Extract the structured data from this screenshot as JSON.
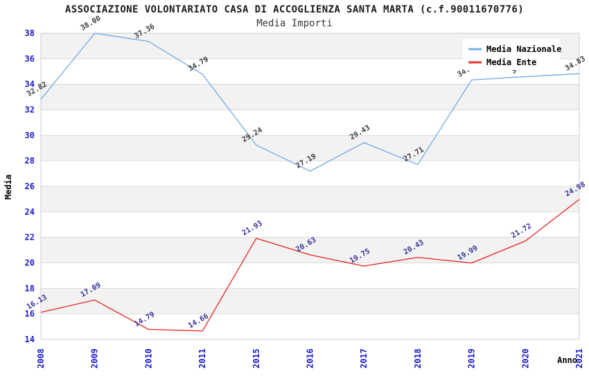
{
  "header": {
    "title": "ASSOCIAZIONE VOLONTARIATO CASA DI ACCOGLIENZA SANTA MARTA (c.f.90011670776)",
    "subtitle": "Media Importi"
  },
  "chart_data": {
    "type": "line",
    "categories": [
      "2008",
      "2009",
      "2010",
      "2011",
      "2015",
      "2016",
      "2017",
      "2018",
      "2019",
      "2020",
      "2021"
    ],
    "series": [
      {
        "name": "Media Nazionale",
        "color": "#7aaee6",
        "label_color": "#3d3d3d",
        "values": [
          32.82,
          38.0,
          37.36,
          34.79,
          29.24,
          27.19,
          29.43,
          27.71,
          34.34,
          34.6,
          34.83
        ]
      },
      {
        "name": "Media Ente",
        "color": "#e53232",
        "label_color": "#333399",
        "values": [
          16.13,
          17.09,
          14.79,
          14.66,
          21.93,
          20.63,
          19.75,
          20.43,
          19.99,
          21.72,
          24.98
        ]
      }
    ],
    "xlabel": "Anno",
    "ylabel": "Media",
    "ylim": [
      14,
      38
    ],
    "ytick_step": 2,
    "grid": "horizontal-alternating-bands",
    "legend_position": "top-right"
  },
  "style": {
    "axis_tick_color": "#1a1acc",
    "band_color": "#f2f2f2",
    "grid_line_color": "#dcdcdc",
    "plot_border_color": "#cccccc",
    "legend_bg": "#ffffff",
    "title_color": "#1a1a1a"
  }
}
